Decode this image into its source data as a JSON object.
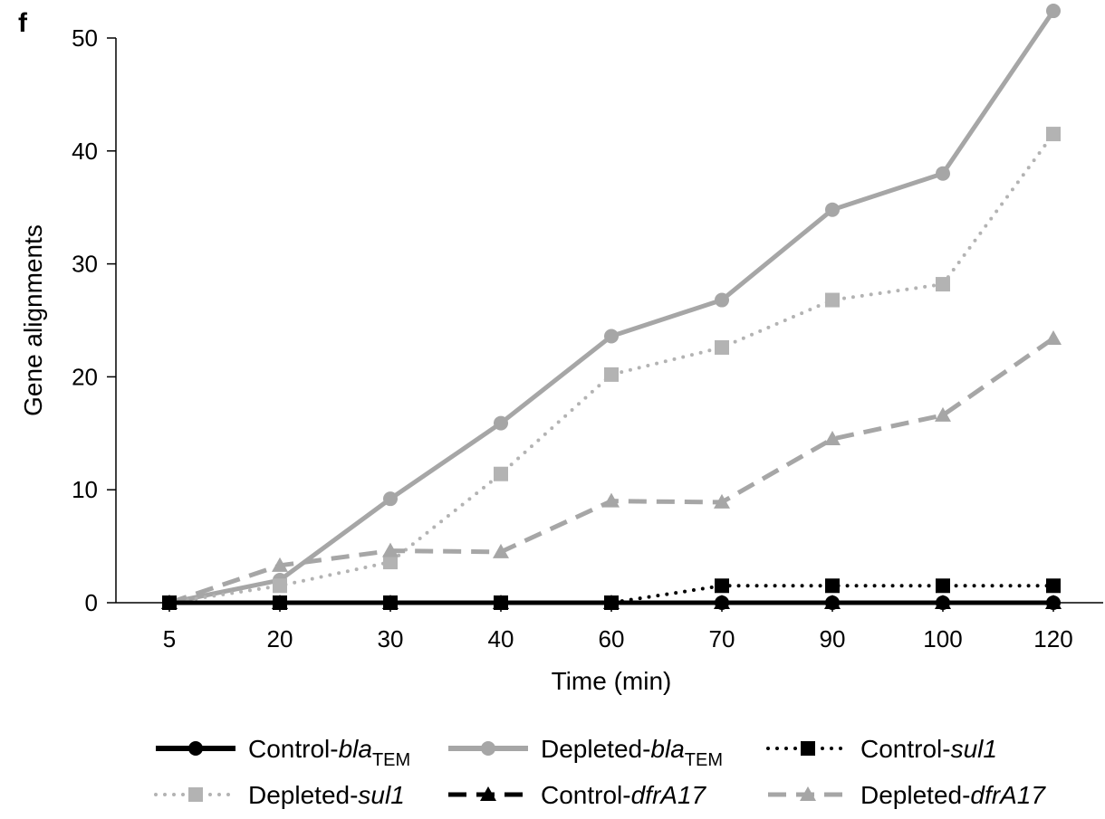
{
  "panel_label": "f",
  "chart_data": {
    "type": "line",
    "title": "",
    "xlabel": "Time (min)",
    "ylabel": "Gene alignments",
    "categories": [
      "5",
      "20",
      "30",
      "40",
      "60",
      "70",
      "90",
      "100",
      "120"
    ],
    "y_ticks": [
      "0",
      "10",
      "20",
      "30",
      "40",
      "50"
    ],
    "ylim": [
      0,
      52.5
    ],
    "grid": false,
    "legend_position": "bottom",
    "series": [
      {
        "key": "control_bla",
        "name": "Control-blaTEM",
        "name_main": "Control-",
        "name_italic": "bla",
        "name_sub": "TEM",
        "color": "#000000",
        "line": "solid",
        "marker": "circle",
        "values": [
          0,
          0,
          0,
          0,
          0,
          0,
          0,
          0,
          0
        ]
      },
      {
        "key": "depleted_bla",
        "name": "Depleted-blaTEM",
        "name_main": "Depleted-",
        "name_italic": "bla",
        "name_sub": "TEM",
        "color": "#a6a6a6",
        "line": "solid",
        "marker": "circle",
        "values": [
          0,
          2,
          9.2,
          15.9,
          23.6,
          26.8,
          34.8,
          38,
          52.4
        ]
      },
      {
        "key": "control_sul1",
        "name": "Control-sul1",
        "name_main": "Control-",
        "name_italic": "sul1",
        "name_sub": "",
        "color": "#000000",
        "line": "dotted",
        "marker": "square",
        "values": [
          0,
          0,
          0,
          0,
          0,
          1.5,
          1.5,
          1.5,
          1.5
        ]
      },
      {
        "key": "depleted_sul1",
        "name": "Depleted-sul1",
        "name_main": "Depleted-",
        "name_italic": "sul1",
        "name_sub": "",
        "color": "#b3b3b3",
        "line": "dotted",
        "marker": "square",
        "values": [
          0,
          1.5,
          3.6,
          11.4,
          20.2,
          22.6,
          26.8,
          28.2,
          41.5
        ]
      },
      {
        "key": "control_dfr",
        "name": "Control-dfrA17",
        "name_main": "Control-",
        "name_italic": "dfrA17",
        "name_sub": "",
        "color": "#000000",
        "line": "dashed",
        "marker": "triangle",
        "values": [
          0,
          0,
          0,
          0,
          0,
          0,
          0,
          0,
          0
        ]
      },
      {
        "key": "depleted_dfr",
        "name": "Depleted-dfrA17",
        "name_main": "Depleted-",
        "name_italic": "dfrA17",
        "name_sub": "",
        "color": "#a6a6a6",
        "line": "dashed",
        "marker": "triangle",
        "values": [
          0,
          3.3,
          4.6,
          4.5,
          9,
          8.9,
          14.5,
          16.6,
          23.4
        ]
      }
    ],
    "legend_order": [
      "control_bla",
      "depleted_bla",
      "control_sul1",
      "depleted_sul1",
      "control_dfr",
      "depleted_dfr"
    ]
  }
}
